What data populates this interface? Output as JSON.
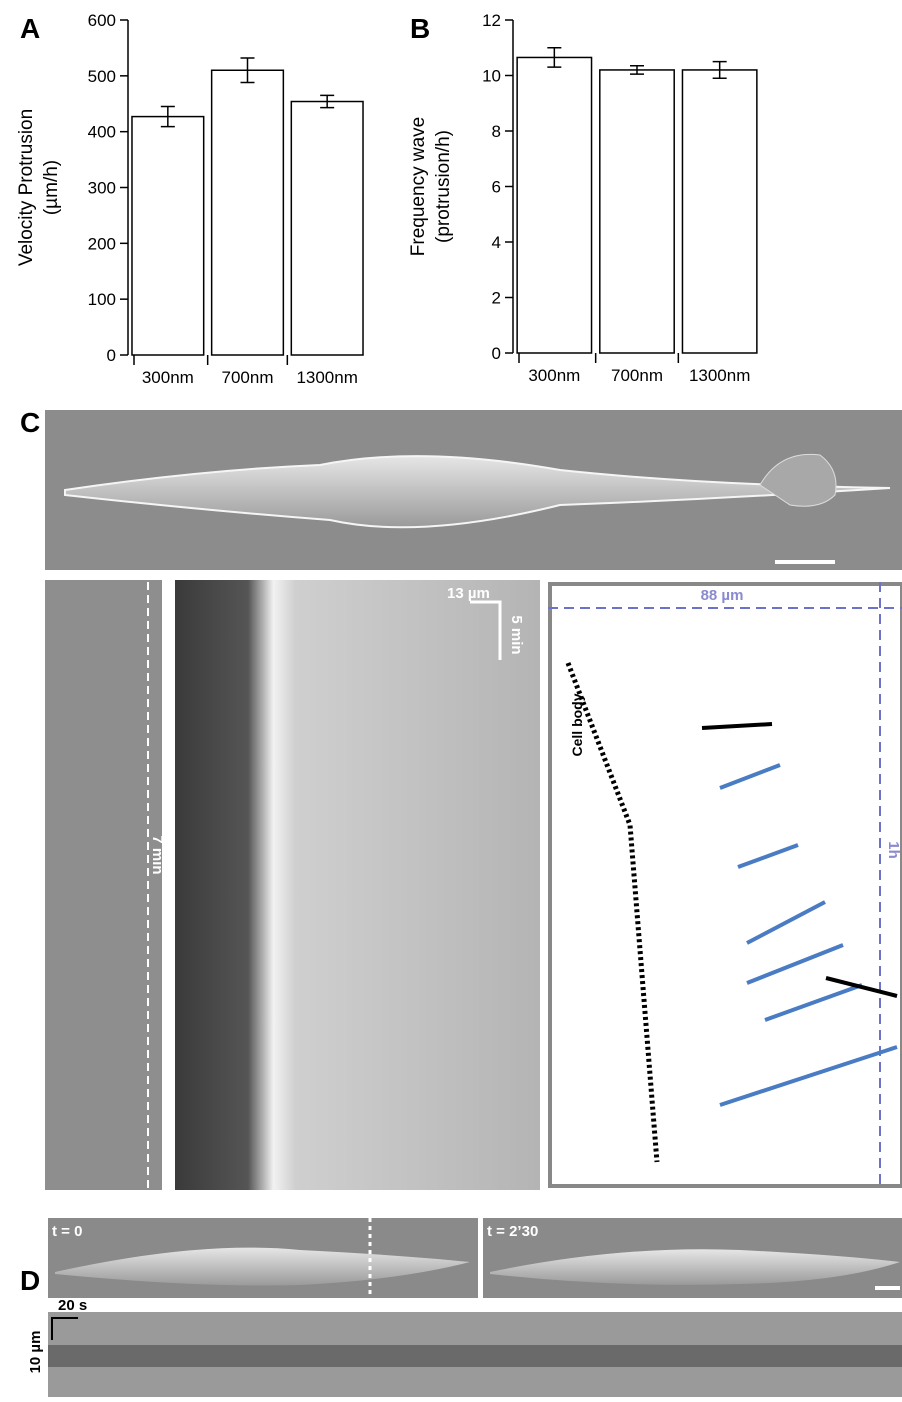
{
  "chart_data": [
    {
      "type": "bar",
      "panel_label": "A",
      "ylabel": [
        "Velocity Protrusion",
        "(µm/h)"
      ],
      "categories": [
        "300nm",
        "700nm",
        "1300nm"
      ],
      "values": [
        427,
        510,
        454
      ],
      "errors": [
        18,
        22,
        11
      ],
      "color": "#ffffff",
      "ylim": [
        0,
        600
      ],
      "yticks": [
        0,
        100,
        200,
        300,
        400,
        500,
        600
      ]
    },
    {
      "type": "bar",
      "panel_label": "B",
      "ylabel": [
        "Frequency wave",
        "(protrusion/h)"
      ],
      "categories": [
        "300nm",
        "700nm",
        "1300nm"
      ],
      "values": [
        10.65,
        10.2,
        10.2
      ],
      "errors": [
        0.35,
        0.15,
        0.3
      ],
      "color": "#ffffff",
      "ylim": [
        0,
        12
      ],
      "yticks": [
        0,
        2,
        4,
        6,
        8,
        10,
        12
      ]
    }
  ],
  "panels": {
    "C": {
      "label": "C",
      "scale_x": "13 µm",
      "scale_t": "5 min",
      "strip_scale": "7 min",
      "width": "88 µm",
      "duration": "1h",
      "cell_body": "Cell body"
    },
    "D": {
      "label": "D",
      "t0": "t = 0",
      "t1": "t = 2’30",
      "time_scale": "20 s",
      "length_scale": "10 µm"
    }
  }
}
